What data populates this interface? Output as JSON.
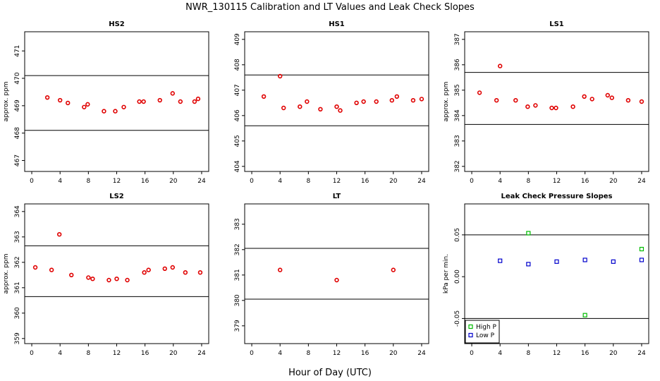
{
  "figure": {
    "title": "NWR_130115  Calibration and LT Values and Leak Check Slopes",
    "xlabel": "Hour of Day (UTC)"
  },
  "chart_data": [
    {
      "type": "scatter",
      "title": "HS2",
      "ylabel": "approx. ppm",
      "xlim": [
        -1,
        25
      ],
      "ylim": [
        466.6,
        471.7
      ],
      "xticks": [
        "0",
        "4",
        "8",
        "12",
        "16",
        "20",
        "24"
      ],
      "yticks": [
        "467",
        "468",
        "469",
        "470",
        "471"
      ],
      "hlines": [
        470.1,
        468.1
      ],
      "series": [
        {
          "name": "values",
          "color": "#e00000",
          "marker": "circle",
          "x": [
            2.2,
            4.0,
            5.1,
            7.4,
            7.9,
            10.2,
            11.8,
            13.0,
            15.2,
            15.8,
            18.1,
            19.9,
            21.0,
            23.0,
            23.5
          ],
          "y": [
            469.3,
            469.2,
            469.1,
            468.95,
            469.05,
            468.8,
            468.8,
            468.95,
            469.15,
            469.15,
            469.2,
            469.45,
            469.15,
            469.15,
            469.25
          ]
        }
      ]
    },
    {
      "type": "scatter",
      "title": "HS1",
      "ylabel": "",
      "xlim": [
        -1,
        25
      ],
      "ylim": [
        403.8,
        409.3
      ],
      "xticks": [
        "0",
        "4",
        "8",
        "12",
        "16",
        "20",
        "24"
      ],
      "yticks": [
        "404",
        "405",
        "406",
        "407",
        "408",
        "409"
      ],
      "hlines": [
        407.6,
        405.6
      ],
      "series": [
        {
          "name": "values",
          "color": "#e00000",
          "marker": "circle",
          "x": [
            1.7,
            4.0,
            4.5,
            6.8,
            7.8,
            9.7,
            12.0,
            12.5,
            14.8,
            15.8,
            17.6,
            19.8,
            20.5,
            22.8,
            24.0
          ],
          "y": [
            406.75,
            407.55,
            406.3,
            406.35,
            406.55,
            406.25,
            406.35,
            406.2,
            406.5,
            406.55,
            406.55,
            406.6,
            406.75,
            406.6,
            406.65
          ]
        }
      ]
    },
    {
      "type": "scatter",
      "title": "LS1",
      "ylabel": "approx. ppm",
      "xlim": [
        -1,
        25
      ],
      "ylim": [
        381.8,
        387.3
      ],
      "xticks": [
        "0",
        "4",
        "8",
        "12",
        "16",
        "20",
        "24"
      ],
      "yticks": [
        "382",
        "383",
        "384",
        "385",
        "386",
        "387"
      ],
      "hlines": [
        385.7,
        383.65
      ],
      "series": [
        {
          "name": "values",
          "color": "#e00000",
          "marker": "circle",
          "x": [
            1.1,
            3.5,
            4.0,
            6.2,
            7.9,
            9.0,
            11.3,
            11.9,
            14.3,
            15.9,
            17.0,
            19.2,
            19.8,
            22.1,
            24.0
          ],
          "y": [
            384.9,
            384.6,
            385.95,
            384.6,
            384.35,
            384.4,
            384.3,
            384.3,
            384.35,
            384.75,
            384.65,
            384.8,
            384.7,
            384.6,
            384.55
          ]
        }
      ]
    },
    {
      "type": "scatter",
      "title": "LS2",
      "ylabel": "approx. ppm",
      "xlim": [
        -1,
        25
      ],
      "ylim": [
        358.8,
        364.3
      ],
      "xticks": [
        "0",
        "4",
        "8",
        "12",
        "16",
        "20",
        "24"
      ],
      "yticks": [
        "359",
        "360",
        "361",
        "362",
        "363",
        "364"
      ],
      "hlines": [
        362.65,
        360.65
      ],
      "series": [
        {
          "name": "values",
          "color": "#e00000",
          "marker": "circle",
          "x": [
            0.5,
            2.8,
            3.9,
            5.6,
            8.0,
            8.6,
            10.9,
            12.0,
            13.5,
            15.9,
            16.5,
            18.8,
            19.9,
            21.7,
            23.8
          ],
          "y": [
            361.8,
            361.7,
            363.1,
            361.5,
            361.4,
            361.35,
            361.3,
            361.35,
            361.3,
            361.6,
            361.7,
            361.75,
            361.8,
            361.6,
            361.6
          ]
        }
      ]
    },
    {
      "type": "scatter",
      "title": "LT",
      "ylabel": "",
      "xlim": [
        -1,
        25
      ],
      "ylim": [
        378.3,
        383.8
      ],
      "xticks": [
        "0",
        "4",
        "8",
        "12",
        "16",
        "20",
        "24"
      ],
      "yticks": [
        "379",
        "380",
        "381",
        "382",
        "383"
      ],
      "hlines": [
        382.05,
        380.05
      ],
      "series": [
        {
          "name": "values",
          "color": "#e00000",
          "marker": "circle",
          "x": [
            4.0,
            12.0,
            20.0
          ],
          "y": [
            381.2,
            380.8,
            381.2
          ]
        }
      ]
    },
    {
      "type": "scatter",
      "title": "Leak Check Pressure Slopes",
      "ylabel": "kPa per min.",
      "xlim": [
        -1,
        25
      ],
      "ylim": [
        -0.08,
        0.087
      ],
      "xticks": [
        "0",
        "4",
        "8",
        "12",
        "16",
        "20",
        "24"
      ],
      "yticks": [
        "-0.05",
        "0.00",
        "0.05"
      ],
      "ytick_values": [
        -0.05,
        0.0,
        0.05
      ],
      "hlines": [
        0.05,
        -0.05
      ],
      "legend": {
        "position": "bottom-left"
      },
      "series": [
        {
          "name": "High P",
          "color": "#00bb00",
          "marker": "square",
          "x": [
            8.0,
            16.0,
            24.0
          ],
          "y": [
            0.052,
            -0.046,
            0.033
          ]
        },
        {
          "name": "Low P",
          "color": "#0000cc",
          "marker": "square",
          "x": [
            4.0,
            8.0,
            12.0,
            16.0,
            20.0,
            24.0
          ],
          "y": [
            0.019,
            0.015,
            0.018,
            0.02,
            0.018,
            0.02
          ]
        }
      ]
    }
  ]
}
